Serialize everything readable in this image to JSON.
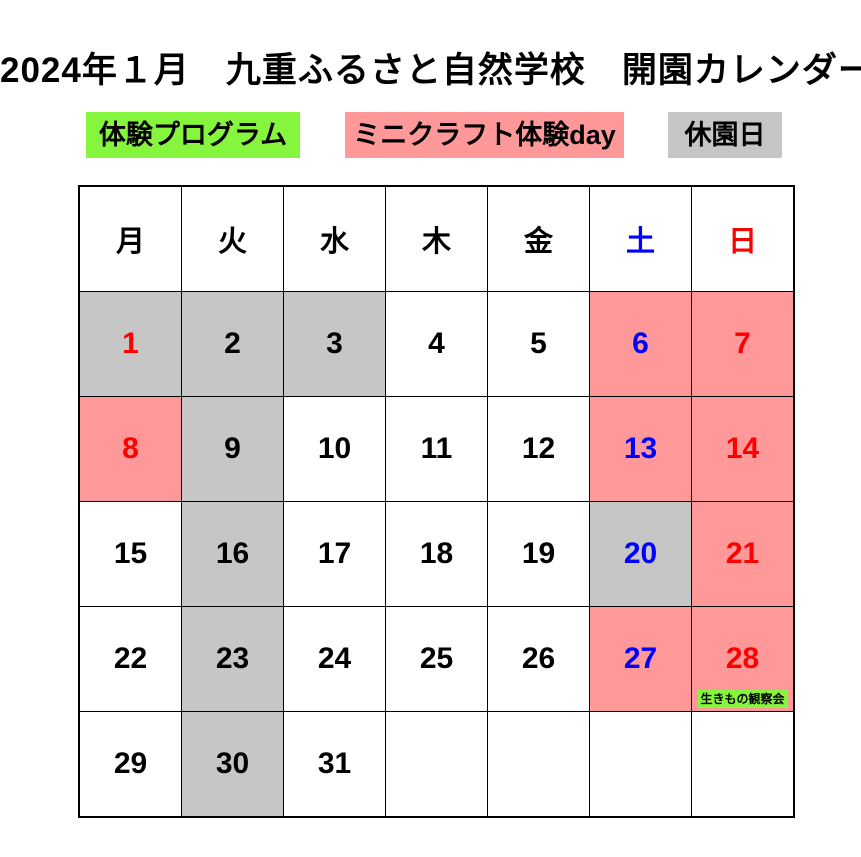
{
  "title": "2024年１月　九重ふるさと自然学校　開園カレンダー",
  "colors": {
    "program_green": "#86F53E",
    "craft_pink": "#FF9898",
    "closed_gray": "#C6C6C6",
    "saturday_blue": "#0000FF",
    "sunday_red": "#FF0000",
    "weekday_black": "#000000",
    "cell_white": "#FFFFFF",
    "border_black": "#000000"
  },
  "legend": {
    "program": {
      "label": "体験プログラム",
      "bg": "#86F53E"
    },
    "craft": {
      "label": "ミニクラフト体験day",
      "bg": "#FF9898"
    },
    "closed": {
      "label": "休園日",
      "bg": "#C6C6C6"
    }
  },
  "calendar": {
    "day_headers": [
      {
        "label": "月",
        "color": "#000000"
      },
      {
        "label": "火",
        "color": "#000000"
      },
      {
        "label": "水",
        "color": "#000000"
      },
      {
        "label": "木",
        "color": "#000000"
      },
      {
        "label": "金",
        "color": "#000000"
      },
      {
        "label": "土",
        "color": "#0000FF"
      },
      {
        "label": "日",
        "color": "#FF0000"
      }
    ],
    "weeks": [
      [
        {
          "day": "1",
          "bg": "#C6C6C6",
          "color": "#FF0000"
        },
        {
          "day": "2",
          "bg": "#C6C6C6",
          "color": "#000000"
        },
        {
          "day": "3",
          "bg": "#C6C6C6",
          "color": "#000000"
        },
        {
          "day": "4",
          "bg": "#FFFFFF",
          "color": "#000000"
        },
        {
          "day": "5",
          "bg": "#FFFFFF",
          "color": "#000000"
        },
        {
          "day": "6",
          "bg": "#FF9898",
          "color": "#0000FF"
        },
        {
          "day": "7",
          "bg": "#FF9898",
          "color": "#FF0000"
        }
      ],
      [
        {
          "day": "8",
          "bg": "#FF9898",
          "color": "#FF0000"
        },
        {
          "day": "9",
          "bg": "#C6C6C6",
          "color": "#000000"
        },
        {
          "day": "10",
          "bg": "#FFFFFF",
          "color": "#000000"
        },
        {
          "day": "11",
          "bg": "#FFFFFF",
          "color": "#000000"
        },
        {
          "day": "12",
          "bg": "#FFFFFF",
          "color": "#000000"
        },
        {
          "day": "13",
          "bg": "#FF9898",
          "color": "#0000FF"
        },
        {
          "day": "14",
          "bg": "#FF9898",
          "color": "#FF0000"
        }
      ],
      [
        {
          "day": "15",
          "bg": "#FFFFFF",
          "color": "#000000"
        },
        {
          "day": "16",
          "bg": "#C6C6C6",
          "color": "#000000"
        },
        {
          "day": "17",
          "bg": "#FFFFFF",
          "color": "#000000"
        },
        {
          "day": "18",
          "bg": "#FFFFFF",
          "color": "#000000"
        },
        {
          "day": "19",
          "bg": "#FFFFFF",
          "color": "#000000"
        },
        {
          "day": "20",
          "bg": "#C6C6C6",
          "color": "#0000FF"
        },
        {
          "day": "21",
          "bg": "#FF9898",
          "color": "#FF0000"
        }
      ],
      [
        {
          "day": "22",
          "bg": "#FFFFFF",
          "color": "#000000"
        },
        {
          "day": "23",
          "bg": "#C6C6C6",
          "color": "#000000"
        },
        {
          "day": "24",
          "bg": "#FFFFFF",
          "color": "#000000"
        },
        {
          "day": "25",
          "bg": "#FFFFFF",
          "color": "#000000"
        },
        {
          "day": "26",
          "bg": "#FFFFFF",
          "color": "#000000"
        },
        {
          "day": "27",
          "bg": "#FF9898",
          "color": "#0000FF"
        },
        {
          "day": "28",
          "bg": "#FF9898",
          "color": "#FF0000",
          "note": "生きもの観察会",
          "note_bg": "#86F53E"
        }
      ],
      [
        {
          "day": "29",
          "bg": "#FFFFFF",
          "color": "#000000"
        },
        {
          "day": "30",
          "bg": "#C6C6C6",
          "color": "#000000"
        },
        {
          "day": "31",
          "bg": "#FFFFFF",
          "color": "#000000"
        },
        {
          "day": "",
          "bg": "#FFFFFF",
          "color": "#000000"
        },
        {
          "day": "",
          "bg": "#FFFFFF",
          "color": "#000000"
        },
        {
          "day": "",
          "bg": "#FFFFFF",
          "color": "#000000"
        },
        {
          "day": "",
          "bg": "#FFFFFF",
          "color": "#000000"
        }
      ]
    ]
  }
}
